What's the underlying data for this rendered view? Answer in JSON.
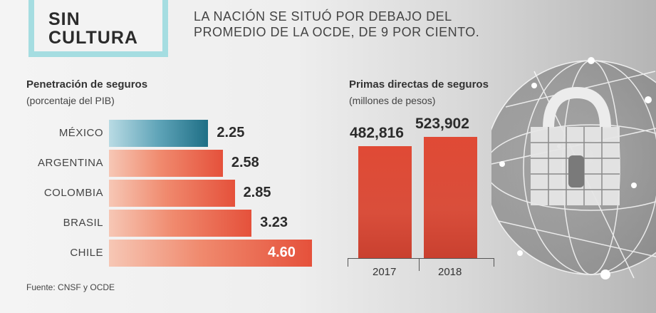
{
  "header": {
    "title": "SIN\nCULTURA",
    "subtitle": "LA NACIÓN SE SITUÓ POR DEBAJO DEL PROMEDIO DE LA OCDE, DE 9 POR CIENTO."
  },
  "left_chart": {
    "title": "Penetración de seguros",
    "subtitle": "(porcentaje del PIB)"
  },
  "right_chart": {
    "title": "Primas directas de seguros",
    "subtitle": "(millones de pesos)"
  },
  "source": "Fuente: CNSF y OCDE",
  "colors": {
    "accent_frame": "#a5dde1",
    "bar_orange": "#e5513b",
    "bar_blue": "#1f6f86",
    "column_red": "#d94e3b"
  },
  "chart_data": [
    {
      "type": "bar",
      "orientation": "horizontal",
      "title": "Penetración de seguros",
      "subtitle": "(porcentaje del PIB)",
      "categories": [
        "MÉXICO",
        "ARGENTINA",
        "COLOMBIA",
        "BRASIL",
        "CHILE"
      ],
      "values": [
        2.25,
        2.58,
        2.85,
        3.23,
        4.6
      ],
      "value_labels": [
        "2.25",
        "2.58",
        "2.85",
        "3.23",
        "4.60"
      ],
      "highlight": "MÉXICO"
    },
    {
      "type": "bar",
      "orientation": "vertical",
      "title": "Primas directas de seguros",
      "subtitle": "(millones de pesos)",
      "categories": [
        "2017",
        "2018"
      ],
      "values": [
        482816,
        523902
      ],
      "value_labels": [
        "482,816",
        "523,902"
      ]
    }
  ]
}
